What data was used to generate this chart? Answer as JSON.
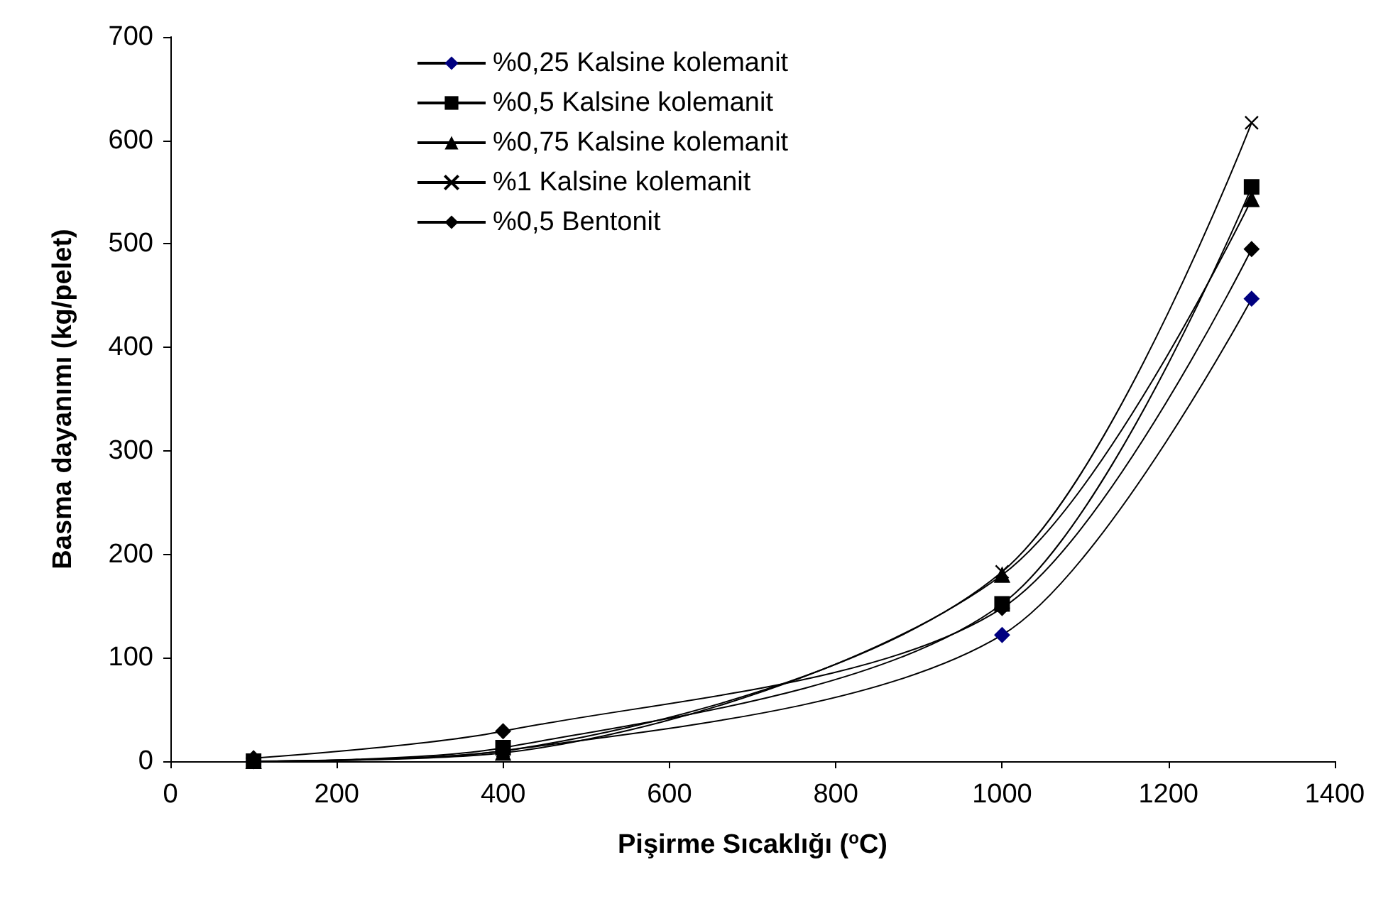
{
  "chart_data": {
    "type": "line",
    "xlabel": "Pişirme Sıcaklığı ($^{o}$C)",
    "ylabel": "Basma dayanımı (kg/pelet)",
    "x": [
      100,
      400,
      1000,
      1300
    ],
    "series": [
      {
        "name": "%0,25 Kalsine kolemanit",
        "color": "#000080",
        "marker": "diamond",
        "values": [
          0,
          10,
          122,
          447
        ]
      },
      {
        "name": "%0,5 Kalsine kolemanit",
        "color": "#000000",
        "marker": "square",
        "values": [
          0,
          13,
          152,
          555
        ]
      },
      {
        "name": "%0,75 Kalsine kolemanit",
        "color": "#000000",
        "marker": "triangle",
        "values": [
          0,
          8,
          180,
          543
        ]
      },
      {
        "name": "%1 Kalsine kolemanit",
        "color": "#000000",
        "marker": "cross",
        "values": [
          0,
          10,
          183,
          617
        ]
      },
      {
        "name": "%0,5 Bentonit",
        "color": "#000000",
        "marker": "diamond",
        "values": [
          3,
          29,
          148,
          495
        ]
      }
    ],
    "xlim": [
      0,
      1400
    ],
    "xticks": [
      0,
      200,
      400,
      600,
      800,
      1000,
      1200,
      1400
    ],
    "ylim": [
      0,
      700
    ],
    "yticks": [
      0,
      100,
      200,
      300,
      400,
      500,
      600,
      700
    ],
    "grid": false,
    "legend": "top left",
    "line_style": "solid"
  }
}
